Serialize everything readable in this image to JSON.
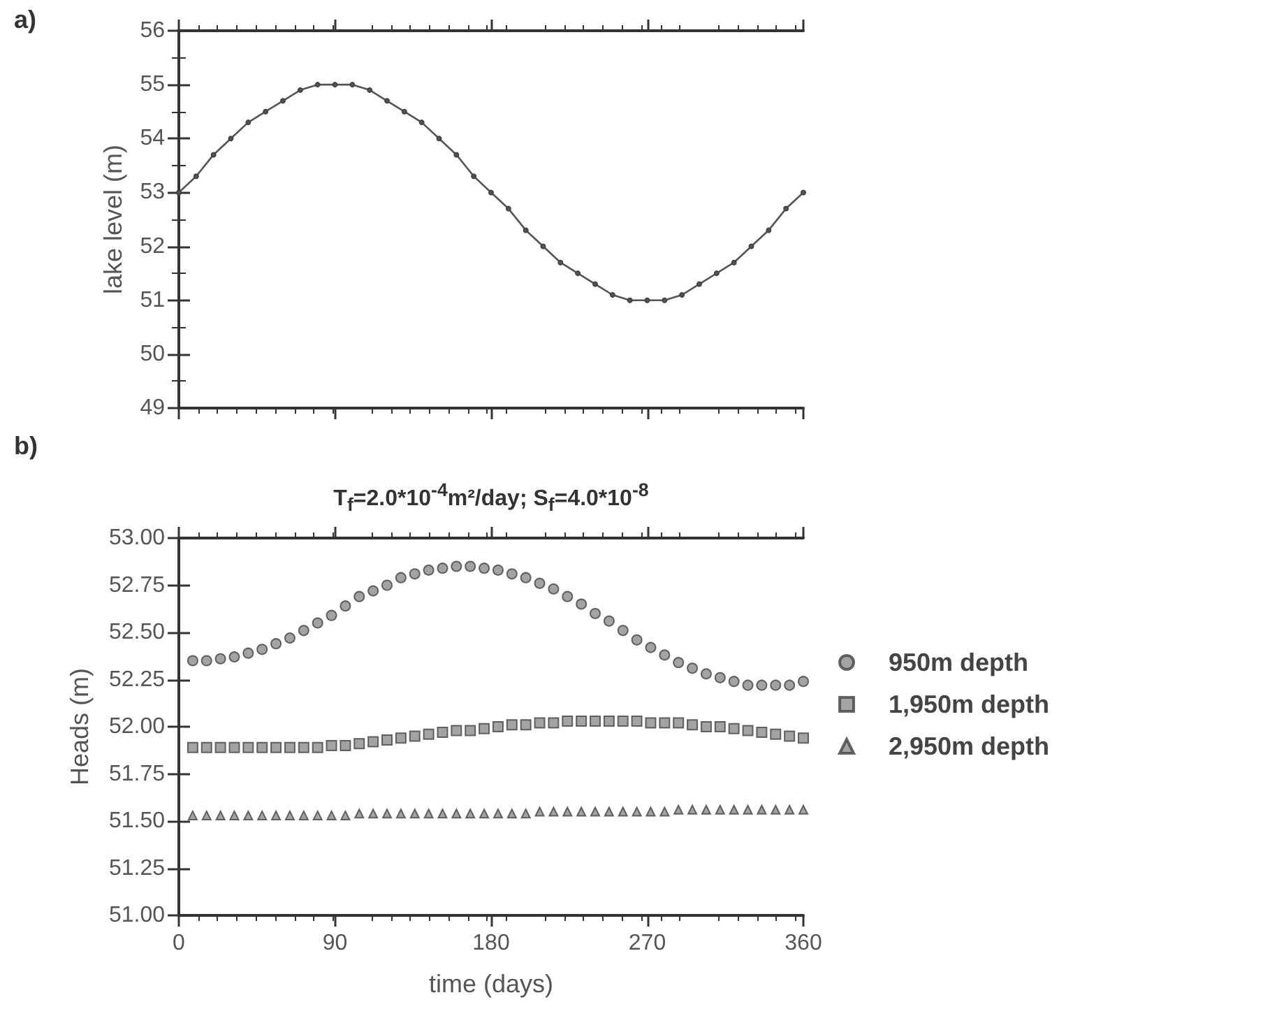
{
  "chart_data": [
    {
      "type": "line",
      "annotations": [
        "a)"
      ],
      "ylabel": "lake level (m)",
      "x": [
        0,
        10,
        20,
        30,
        40,
        50,
        60,
        70,
        80,
        90,
        100,
        110,
        120,
        130,
        140,
        150,
        160,
        170,
        180,
        190,
        200,
        210,
        220,
        230,
        240,
        250,
        260,
        270,
        280,
        290,
        300,
        310,
        320,
        330,
        340,
        350,
        360
      ],
      "series": [
        {
          "color": "#555555",
          "marker": "circle",
          "values": [
            53.0,
            53.3,
            53.7,
            54.0,
            54.3,
            54.5,
            54.7,
            54.9,
            55.0,
            55.0,
            55.0,
            54.9,
            54.7,
            54.5,
            54.3,
            54.0,
            53.7,
            53.3,
            53.0,
            52.7,
            52.3,
            52.0,
            51.7,
            51.5,
            51.3,
            51.1,
            51.0,
            51.0,
            51.0,
            51.1,
            51.3,
            51.5,
            51.7,
            52.0,
            52.3,
            52.7,
            53.0
          ]
        }
      ],
      "xlim": [
        0,
        360
      ],
      "xticks": [
        0,
        90,
        180,
        270,
        360
      ],
      "ylim": [
        49,
        56
      ],
      "yticks": [
        49,
        50,
        51,
        52,
        53,
        54,
        55,
        56
      ],
      "tick_labels": "y",
      "grid": false,
      "line_style": "solid"
    },
    {
      "type": "scatter",
      "annotations": [
        "b)"
      ],
      "title": "T$_{f}$=2.0*10$^{-4}$m²/day; S$_{f}$=4.0*10$^{-8}$",
      "xlabel": "time (days)",
      "ylabel": "Heads (m)",
      "x": [
        8,
        16,
        24,
        32,
        40,
        48,
        56,
        64,
        72,
        80,
        88,
        96,
        104,
        112,
        120,
        128,
        136,
        144,
        152,
        160,
        168,
        176,
        184,
        192,
        200,
        208,
        216,
        224,
        232,
        240,
        248,
        256,
        264,
        272,
        280,
        288,
        296,
        304,
        312,
        320,
        328,
        336,
        344,
        352,
        360
      ],
      "series": [
        {
          "name": "950m depth",
          "color": "#8c8c8c",
          "marker": "circle",
          "values": [
            52.35,
            52.35,
            52.36,
            52.37,
            52.39,
            52.41,
            52.44,
            52.47,
            52.51,
            52.55,
            52.59,
            52.64,
            52.69,
            52.72,
            52.75,
            52.79,
            52.81,
            52.83,
            52.84,
            52.85,
            52.85,
            52.84,
            52.83,
            52.81,
            52.79,
            52.76,
            52.73,
            52.69,
            52.65,
            52.6,
            52.56,
            52.51,
            52.46,
            52.42,
            52.38,
            52.34,
            52.31,
            52.28,
            52.26,
            52.24,
            52.22,
            52.22,
            52.22,
            52.22,
            52.24
          ]
        },
        {
          "name": "1,950m depth",
          "color": "#8c8c8c",
          "marker": "square",
          "values": [
            51.89,
            51.89,
            51.89,
            51.89,
            51.89,
            51.89,
            51.89,
            51.89,
            51.89,
            51.89,
            51.9,
            51.9,
            51.91,
            51.92,
            51.93,
            51.94,
            51.95,
            51.96,
            51.97,
            51.98,
            51.98,
            51.99,
            52.0,
            52.01,
            52.01,
            52.02,
            52.02,
            52.03,
            52.03,
            52.03,
            52.03,
            52.03,
            52.03,
            52.02,
            52.02,
            52.02,
            52.01,
            52.0,
            52.0,
            51.99,
            51.98,
            51.97,
            51.96,
            51.95,
            51.94
          ]
        },
        {
          "name": "2,950m depth",
          "color": "#8c8c8c",
          "marker": "triangle",
          "values": [
            51.53,
            51.53,
            51.53,
            51.53,
            51.53,
            51.53,
            51.53,
            51.53,
            51.53,
            51.53,
            51.53,
            51.53,
            51.54,
            51.54,
            51.54,
            51.54,
            51.54,
            51.54,
            51.54,
            51.54,
            51.54,
            51.54,
            51.54,
            51.54,
            51.54,
            51.55,
            51.55,
            51.55,
            51.55,
            51.55,
            51.55,
            51.55,
            51.55,
            51.55,
            51.55,
            51.56,
            51.56,
            51.56,
            51.56,
            51.56,
            51.56,
            51.56,
            51.56,
            51.56,
            51.56
          ]
        }
      ],
      "xlim": [
        0,
        360
      ],
      "xticks": [
        0,
        90,
        180,
        270,
        360
      ],
      "ylim": [
        51,
        53
      ],
      "yticks": [
        {
          "value": 51,
          "label": "51.00"
        },
        51.25,
        {
          "value": 51.5,
          "label": "51.50"
        },
        51.75,
        {
          "value": 52,
          "label": "52.00"
        },
        52.25,
        {
          "value": 52.5,
          "label": "52.50"
        },
        52.75,
        {
          "value": 53,
          "label": "53.00"
        }
      ],
      "grid": false,
      "legend": "right"
    }
  ]
}
